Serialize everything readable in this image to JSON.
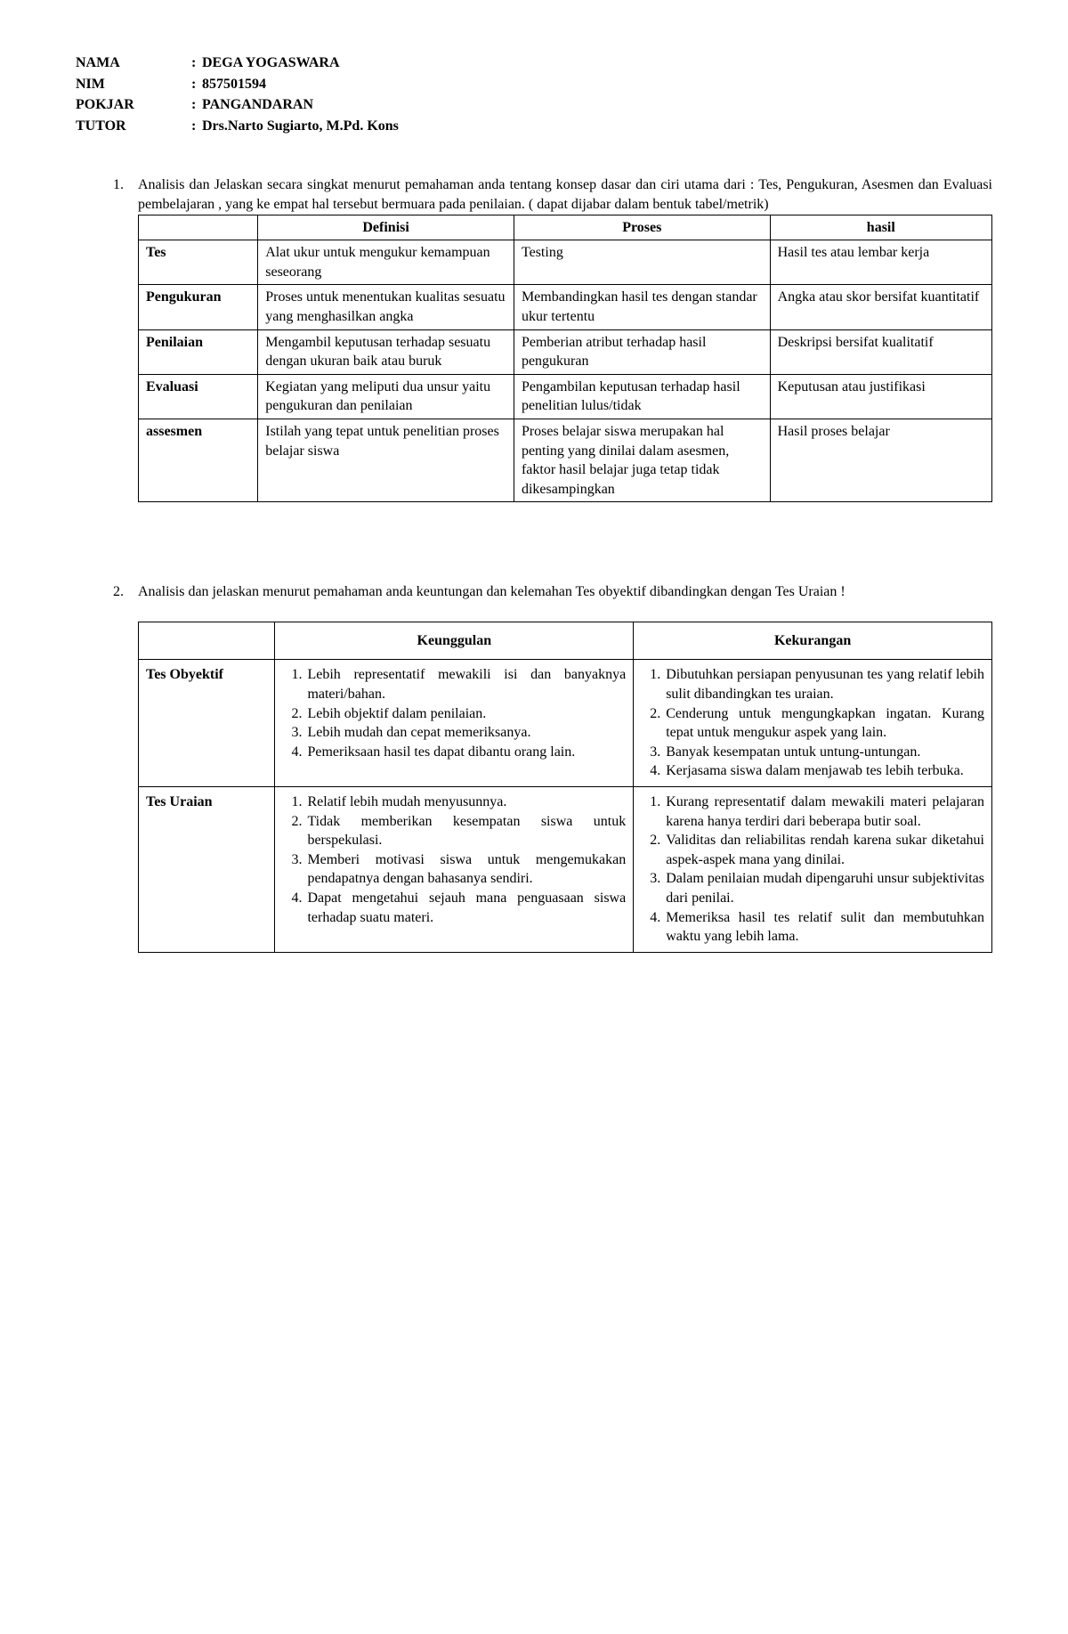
{
  "header": {
    "rows": [
      {
        "label": "NAMA",
        "value": "DEGA YOGASWARA"
      },
      {
        "label": "NIM",
        "value": "857501594"
      },
      {
        "label": "POKJAR",
        "value": "PANGANDARAN"
      },
      {
        "label": "TUTOR",
        "value": "Drs.Narto Sugiarto, M.Pd. Kons"
      }
    ]
  },
  "q1": {
    "num": "1.",
    "text": "Analisis dan Jelaskan secara singkat menurut pemahaman anda tentang konsep dasar dan ciri utama dari : Tes, Pengukuran, Asesmen dan Evaluasi pembelajaran , yang ke empat hal tersebut bermuara pada penilaian. ( dapat dijabar dalam bentuk tabel/metrik)",
    "table": {
      "headers": [
        "",
        "Definisi",
        "Proses",
        "hasil"
      ],
      "rows": [
        {
          "h": "Tes",
          "c": [
            "Alat ukur untuk mengukur kemampuan seseorang",
            "Testing",
            "Hasil tes atau lembar kerja"
          ]
        },
        {
          "h": "Pengukuran",
          "c": [
            "Proses untuk menentukan kualitas sesuatu yang menghasilkan angka",
            "Membandingkan hasil tes dengan standar ukur tertentu",
            "Angka atau skor bersifat kuantitatif"
          ]
        },
        {
          "h": "Penilaian",
          "c": [
            "Mengambil keputusan terhadap sesuatu dengan ukuran baik atau buruk",
            "Pemberian atribut terhadap hasil pengukuran",
            "Deskripsi bersifat kualitatif"
          ]
        },
        {
          "h": "Evaluasi",
          "c": [
            "Kegiatan yang meliputi dua unsur yaitu pengukuran dan penilaian",
            "Pengambilan keputusan terhadap hasil penelitian lulus/tidak",
            "Keputusan atau justifikasi"
          ]
        },
        {
          "h": "assesmen",
          "c": [
            "Istilah yang tepat untuk penelitian proses belajar siswa",
            "Proses belajar siswa merupakan hal penting yang dinilai dalam asesmen, faktor hasil belajar juga tetap tidak dikesampingkan",
            "Hasil proses belajar"
          ]
        }
      ]
    }
  },
  "q2": {
    "num": "2.",
    "text": "Analisis dan jelaskan menurut pemahaman anda keuntungan dan kelemahan Tes obyektif dibandingkan dengan Tes Uraian !",
    "table": {
      "headers": [
        "",
        "Keunggulan",
        "Kekurangan"
      ],
      "rows": [
        {
          "h": "Tes Obyektif",
          "adv": [
            "Lebih representatif mewakili isi dan banyaknya materi/bahan.",
            "Lebih objektif dalam penilaian.",
            "Lebih mudah dan cepat memeriksanya.",
            "Pemeriksaan hasil tes dapat dibantu orang lain."
          ],
          "dis": [
            "Dibutuhkan persiapan penyusunan tes yang relatif lebih sulit dibandingkan tes uraian.",
            "Cenderung untuk mengungkapkan ingatan. Kurang tepat untuk mengukur aspek yang lain.",
            "Banyak kesempatan untuk untung-untungan.",
            "Kerjasama siswa dalam menjawab tes lebih terbuka."
          ]
        },
        {
          "h": "Tes Uraian",
          "adv": [
            "Relatif lebih mudah menyusunnya.",
            "Tidak memberikan kesempatan siswa untuk berspekulasi.",
            "Memberi motivasi siswa untuk mengemukakan pendapatnya dengan bahasanya sendiri.",
            "Dapat mengetahui sejauh mana penguasaan siswa terhadap suatu materi."
          ],
          "dis": [
            "Kurang representatif dalam mewakili materi pelajaran karena hanya terdiri dari beberapa butir soal.",
            "Validitas dan reliabilitas rendah karena sukar diketahui aspek-aspek mana yang dinilai.",
            "Dalam penilaian mudah dipengaruhi unsur subjektivitas dari penilai.",
            "Memeriksa hasil tes relatif sulit dan membutuhkan waktu yang lebih lama."
          ]
        }
      ]
    }
  }
}
